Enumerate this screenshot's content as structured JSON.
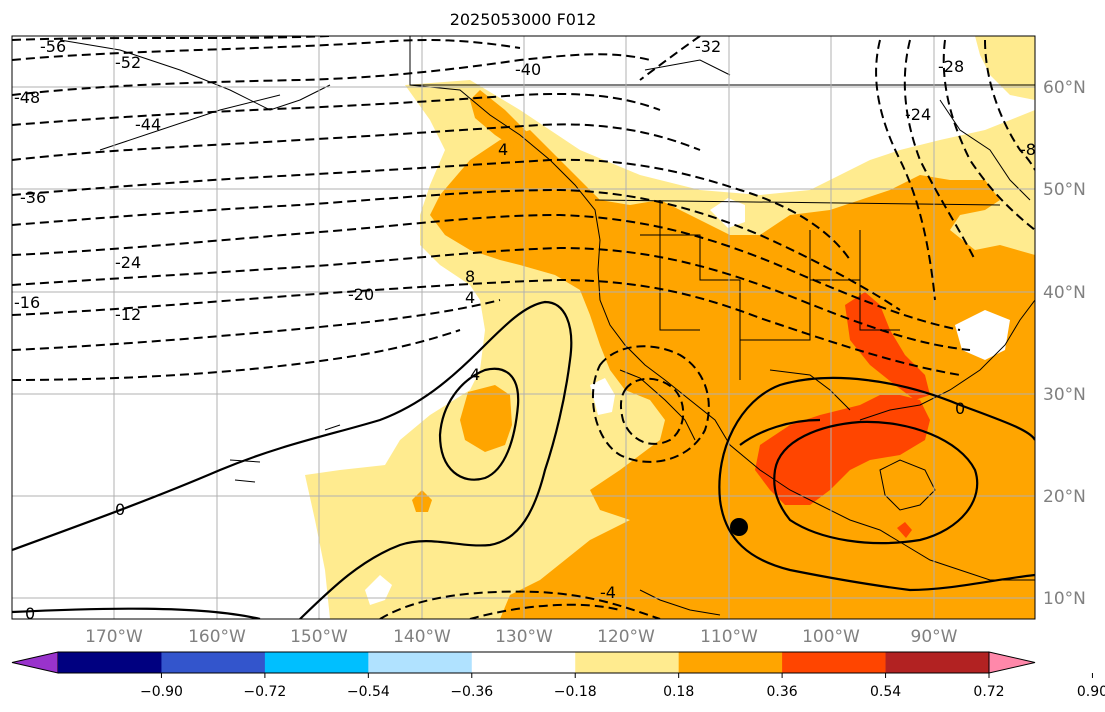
{
  "title": "2025053000 F012",
  "map": {
    "lat_labels": [
      "60°N",
      "50°N",
      "40°N",
      "30°N",
      "20°N",
      "10°N"
    ],
    "lon_labels": [
      "170°W",
      "160°W",
      "150°W",
      "140°W",
      "130°W",
      "120°W",
      "110°W",
      "100°W",
      "90°W"
    ],
    "contour_labels": [
      "-56",
      "-52",
      "-48",
      "-44",
      "-40",
      "-36",
      "-32",
      "-28",
      "-24",
      "-24",
      "-20",
      "-16",
      "-12",
      "-8",
      "-4",
      "0",
      "0",
      "0",
      "4",
      "4",
      "4",
      "8"
    ],
    "marker": "black-dot"
  },
  "colorbar": {
    "ticks": [
      "−0.90",
      "−0.72",
      "−0.54",
      "−0.36",
      "−0.18",
      "0.18",
      "0.36",
      "0.54",
      "0.72",
      "0.90"
    ],
    "colors": [
      "#9933cc",
      "#000080",
      "#3355cc",
      "#00bfff",
      "#b0e2ff",
      "#ffffff",
      "#ffeb8f",
      "#ffa500",
      "#ff4500",
      "#b22222",
      "#ff88aa"
    ]
  }
}
